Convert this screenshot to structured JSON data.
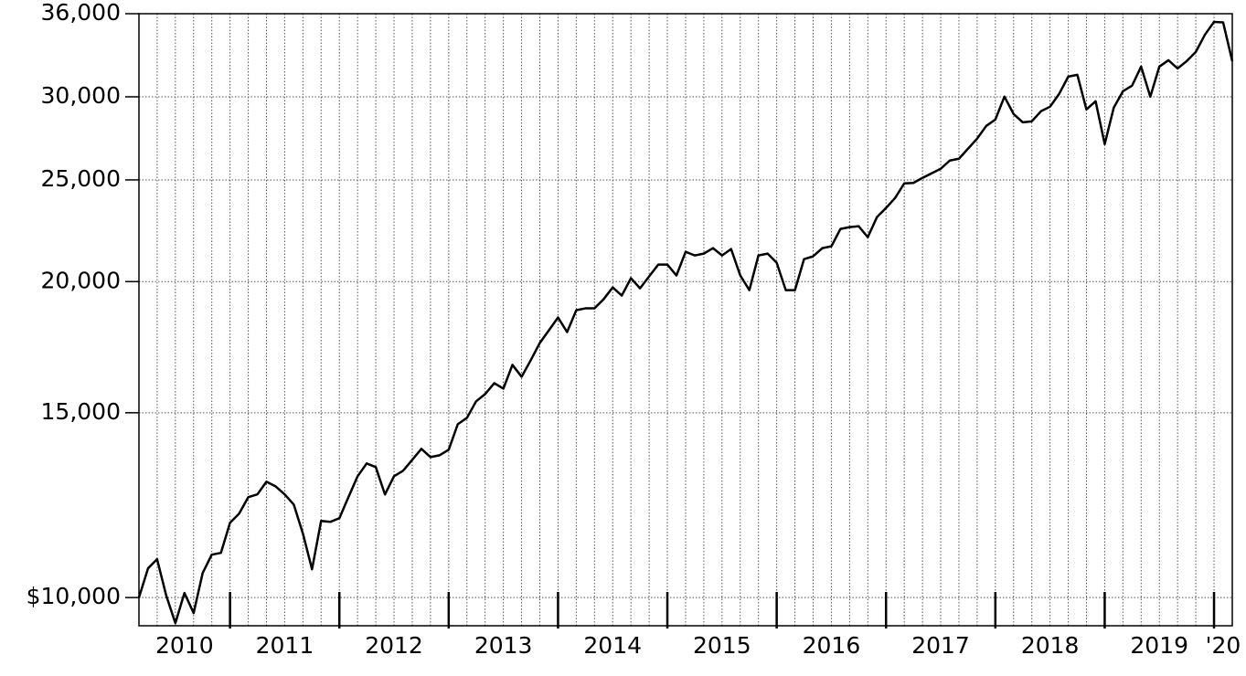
{
  "chart_data": {
    "type": "line",
    "x": [
      2010.167,
      2010.25,
      2010.333,
      2010.417,
      2010.5,
      2010.583,
      2010.667,
      2010.75,
      2010.833,
      2010.917,
      2011,
      2011.083,
      2011.167,
      2011.25,
      2011.333,
      2011.417,
      2011.5,
      2011.583,
      2011.667,
      2011.75,
      2011.833,
      2011.917,
      2012,
      2012.083,
      2012.167,
      2012.25,
      2012.333,
      2012.417,
      2012.5,
      2012.583,
      2012.667,
      2012.75,
      2012.833,
      2012.917,
      2013,
      2013.083,
      2013.167,
      2013.25,
      2013.333,
      2013.417,
      2013.5,
      2013.583,
      2013.667,
      2013.75,
      2013.833,
      2013.917,
      2014,
      2014.083,
      2014.167,
      2014.25,
      2014.333,
      2014.417,
      2014.5,
      2014.583,
      2014.667,
      2014.75,
      2014.833,
      2014.917,
      2015,
      2015.083,
      2015.167,
      2015.25,
      2015.333,
      2015.417,
      2015.5,
      2015.583,
      2015.667,
      2015.75,
      2015.833,
      2015.917,
      2016,
      2016.083,
      2016.167,
      2016.25,
      2016.333,
      2016.417,
      2016.5,
      2016.583,
      2016.667,
      2016.75,
      2016.833,
      2016.917,
      2017,
      2017.083,
      2017.167,
      2017.25,
      2017.333,
      2017.417,
      2017.5,
      2017.583,
      2017.667,
      2017.75,
      2017.833,
      2017.917,
      2018,
      2018.083,
      2018.167,
      2018.25,
      2018.333,
      2018.417,
      2018.5,
      2018.583,
      2018.667,
      2018.75,
      2018.833,
      2018.917,
      2019,
      2019.083,
      2019.167,
      2019.25,
      2019.333,
      2019.417,
      2019.5,
      2019.583,
      2019.667,
      2019.75,
      2019.833,
      2019.917,
      2020,
      2020.083,
      2020.167
    ],
    "series": [
      {
        "color": "#000000",
        "values": [
          10000,
          10661,
          10877,
          10040,
          9455,
          10101,
          9666,
          10555,
          10986,
          11031,
          11783,
          12021,
          12464,
          12540,
          12893,
          12763,
          12540,
          12264,
          11504,
          10640,
          11830,
          11806,
          11902,
          12464,
          13050,
          13421,
          13314,
          12538,
          13050,
          13207,
          13528,
          13858,
          13610,
          13664,
          13830,
          14627,
          14834,
          15377,
          15627,
          16006,
          15815,
          16660,
          16232,
          16828,
          17479,
          17975,
          18486,
          17904,
          18785,
          18860,
          18860,
          19242,
          19748,
          19396,
          20148,
          19708,
          20229,
          20762,
          20762,
          20270,
          21352,
          21182,
          21267,
          21524,
          21182,
          21481,
          20270,
          19630,
          21182,
          21267,
          20845,
          19630,
          19630,
          21012,
          21140,
          21524,
          21610,
          22449,
          22539,
          22584,
          22048,
          23040,
          23506,
          24029,
          24810,
          24835,
          25109,
          25362,
          25618,
          26084,
          26189,
          26772,
          27368,
          28145,
          28541,
          30008,
          28887,
          28371,
          28427,
          29063,
          29355,
          30189,
          31358,
          31484,
          29180,
          29710,
          27041,
          29297,
          30371,
          30737,
          32055,
          30008,
          32055,
          32507,
          31927,
          32442,
          33101,
          34383,
          35359,
          35323,
          32442
        ]
      }
    ],
    "xlim": [
      2010.167,
      2020.167
    ],
    "xticks": [
      2011,
      2012,
      2013,
      2014,
      2015,
      2016,
      2017,
      2018,
      2019,
      2020
    ],
    "x_labels": [
      "2010",
      "2011",
      "2012",
      "2013",
      "2014",
      "2015",
      "2016",
      "2017",
      "2018",
      "2019",
      "'20"
    ],
    "ylim": [
      9400,
      36000
    ],
    "log_y": true,
    "yticks": [
      {
        "value": 10000,
        "label": "$10,000"
      },
      {
        "value": 15000,
        "label": "15,000"
      },
      {
        "value": 20000,
        "label": "20,000"
      },
      {
        "value": 25000,
        "label": "25,000"
      },
      {
        "value": 30000,
        "label": "30,000"
      },
      {
        "value": 36000,
        "label": "36,000"
      }
    ],
    "grid": true
  }
}
